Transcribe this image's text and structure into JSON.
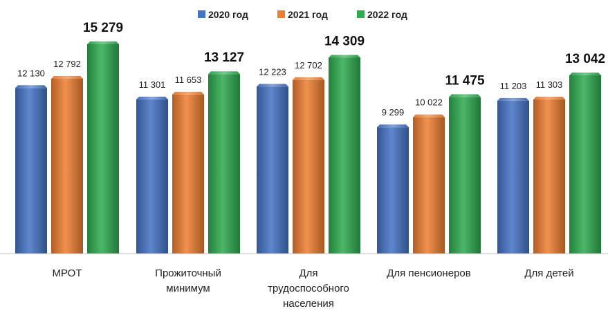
{
  "chart_data": {
    "type": "bar",
    "categories": [
      [
        "МРОТ"
      ],
      [
        "Прожиточный",
        "минимум"
      ],
      [
        "Для",
        "трудоспособного",
        "населения"
      ],
      [
        "Для пенсионеров"
      ],
      [
        "Для детей"
      ]
    ],
    "series": [
      {
        "name": "2020 год",
        "color": "#4472C4",
        "values": [
          12130,
          11301,
          12223,
          9299,
          11203
        ],
        "labels": [
          "12 130",
          "11 301",
          "12 223",
          "9 299",
          "11 203"
        ]
      },
      {
        "name": "2021 год",
        "color": "#ED7D31",
        "values": [
          12792,
          11653,
          12702,
          10022,
          11303
        ],
        "labels": [
          "12 792",
          "11 653",
          "12 702",
          "10 022",
          "11 303"
        ]
      },
      {
        "name": "2022 год",
        "color": "#2EAA4F",
        "values": [
          15279,
          13127,
          14309,
          11475,
          13042
        ],
        "labels": [
          "15 279",
          "13 127",
          "14 309",
          "11 475",
          "13 042"
        ]
      }
    ],
    "legend_position": "top",
    "grid": false,
    "title": "",
    "xlabel": "",
    "ylabel": ""
  }
}
